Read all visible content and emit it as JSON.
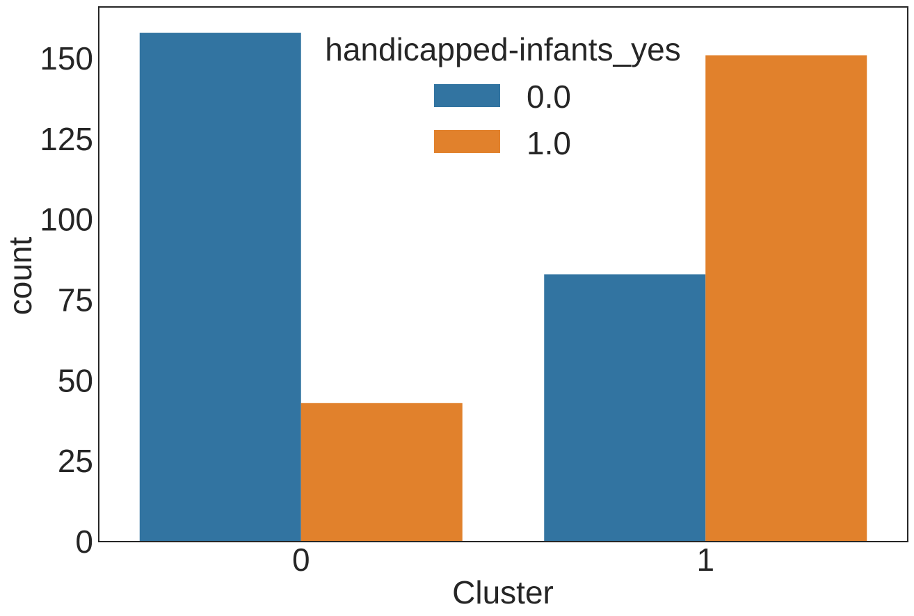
{
  "chart_data": {
    "type": "bar",
    "xlabel": "Cluster",
    "ylabel": "count",
    "categories": [
      "0",
      "1"
    ],
    "series": [
      {
        "name": "0.0",
        "color": "#3274a1",
        "values": [
          158,
          83
        ]
      },
      {
        "name": "1.0",
        "color": "#e1812c",
        "values": [
          43,
          151
        ]
      }
    ],
    "ylim": [
      0,
      166
    ],
    "yticks": [
      0,
      25,
      50,
      75,
      100,
      125,
      150
    ],
    "legend": {
      "title": "handicapped-infants_yes",
      "placement": "top-center"
    },
    "grid": false
  }
}
